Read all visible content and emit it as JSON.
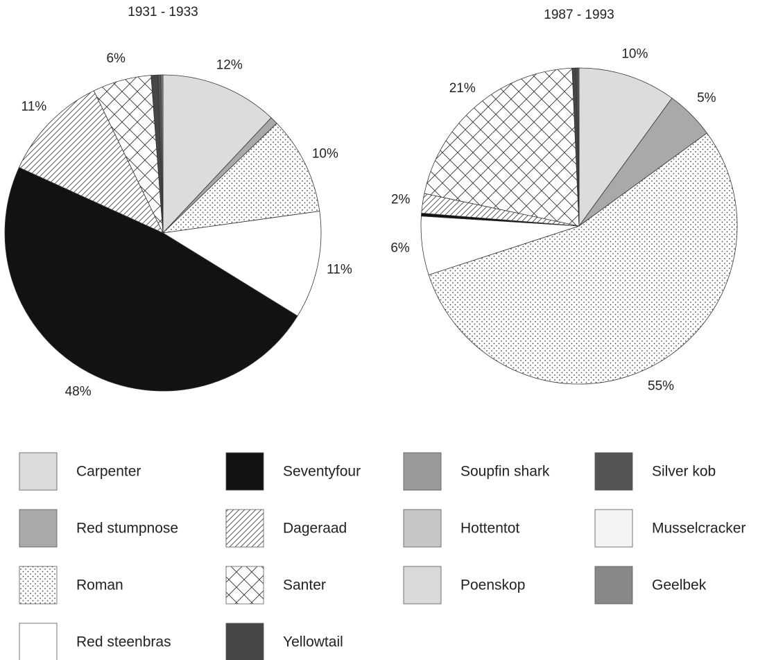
{
  "chart_data": [
    {
      "type": "pie",
      "title": "1931 - 1933",
      "categories": [
        "Carpenter",
        "Red stumpnose",
        "Roman",
        "Red steenbras",
        "Seventyfour",
        "Dageraad",
        "Santer",
        "Yellowtail",
        "Silver kob",
        "Geelbek"
      ],
      "values": [
        12,
        0.8,
        10,
        11,
        48,
        11,
        6,
        0.7,
        0.3,
        0.2
      ],
      "value_labels": [
        "12%",
        null,
        "10%",
        "11%",
        "48%",
        "11%",
        "6%",
        null,
        null,
        null
      ]
    },
    {
      "type": "pie",
      "title": "1987 - 1993",
      "categories": [
        "Carpenter",
        "Red stumpnose",
        "Roman",
        "Red steenbras",
        "Seventyfour",
        "Dageraad",
        "Santer",
        "Yellowtail",
        "Silver kob",
        "Soupfin shark"
      ],
      "values": [
        10,
        5,
        55,
        6,
        0.3,
        2,
        21,
        0.4,
        0.2,
        0.1
      ],
      "value_labels": [
        "10%",
        "5%",
        "55%",
        "6%",
        null,
        "2%",
        "21%",
        null,
        null,
        null
      ]
    }
  ],
  "legend": {
    "items": [
      {
        "name": "Carpenter",
        "fill": "#dcdcdc"
      },
      {
        "name": "Seventyfour",
        "fill": "#121212"
      },
      {
        "name": "Soupfin shark",
        "fill": "#9a9a9a"
      },
      {
        "name": "Silver kob",
        "fill": "#555555"
      },
      {
        "name": "Red stumpnose",
        "fill": "#a9a9a9"
      },
      {
        "name": "Dageraad",
        "fill": "hatch"
      },
      {
        "name": "Hottentot",
        "fill": "#c6c6c6"
      },
      {
        "name": "Musselcracker",
        "fill": "#f3f3f3"
      },
      {
        "name": "Roman",
        "fill": "dots"
      },
      {
        "name": "Santer",
        "fill": "cross"
      },
      {
        "name": "Poenskop",
        "fill": "#d9d9d9"
      },
      {
        "name": "Geelbek",
        "fill": "#888888"
      },
      {
        "name": "Red steenbras",
        "fill": "#ffffff"
      },
      {
        "name": "Yellowtail",
        "fill": "#474747"
      }
    ]
  }
}
